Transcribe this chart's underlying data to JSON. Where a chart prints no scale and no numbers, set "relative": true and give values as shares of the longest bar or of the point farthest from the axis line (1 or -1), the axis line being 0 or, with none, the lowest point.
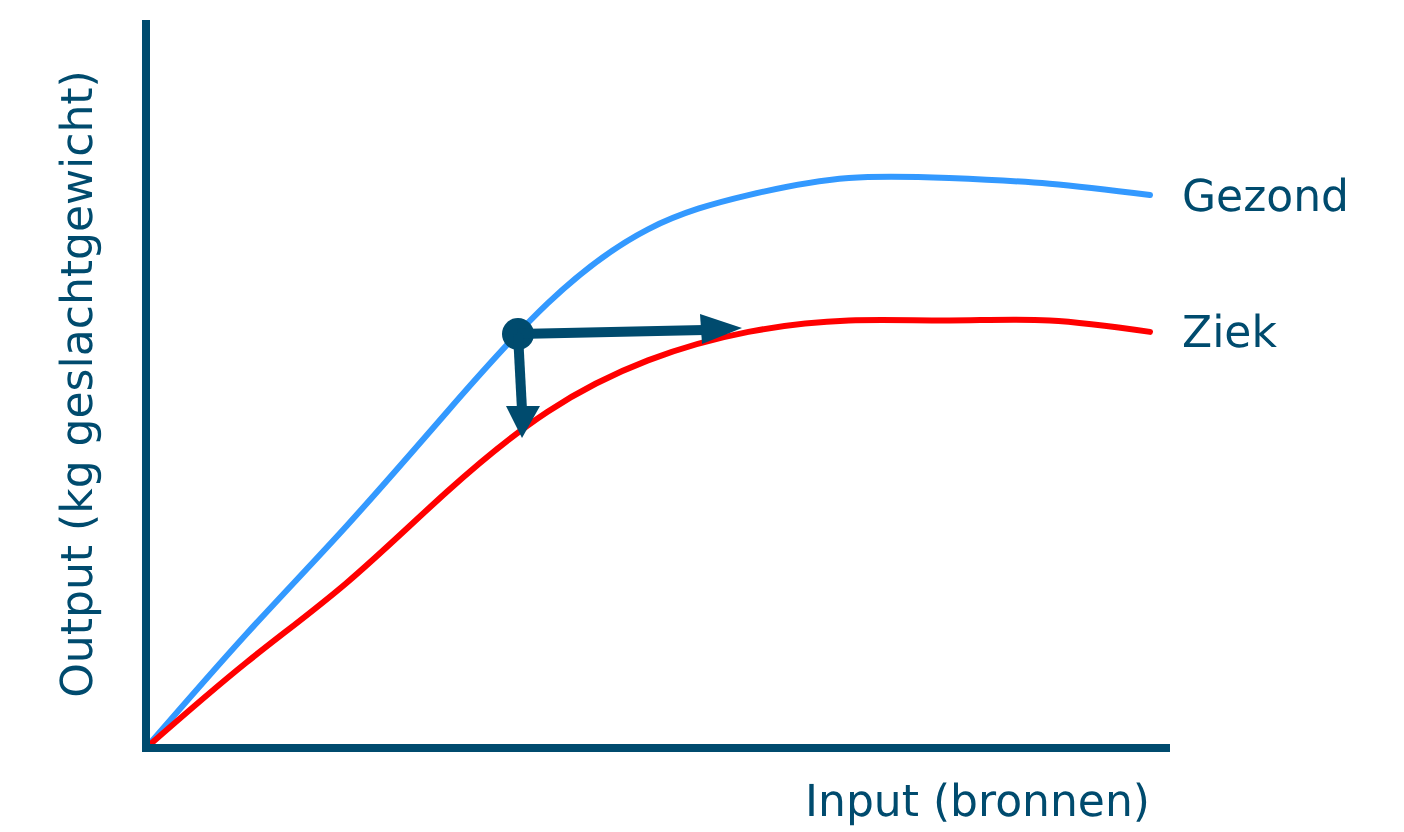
{
  "chart_data": {
    "type": "line",
    "relative": true,
    "xlabel": "Input (bronnen)",
    "ylabel": "Output (kg geslachtgewicht)",
    "categories": [
      null,
      null,
      null,
      null,
      null,
      null,
      null,
      null,
      null,
      null,
      null
    ],
    "marker": "none",
    "line_style": "solid",
    "series": [
      {
        "name": "Gezond",
        "color": "#3399ff",
        "values": [
          0,
          0.2,
          0.39,
          0.59,
          0.78,
          0.91,
          0.97,
          1.0,
          1.0,
          0.99,
          0.97
        ]
      },
      {
        "name": "Ziek",
        "color": "#ff0000",
        "values": [
          0,
          0.15,
          0.29,
          0.45,
          0.59,
          0.68,
          0.73,
          0.75,
          0.75,
          0.75,
          0.73
        ]
      }
    ]
  }
}
